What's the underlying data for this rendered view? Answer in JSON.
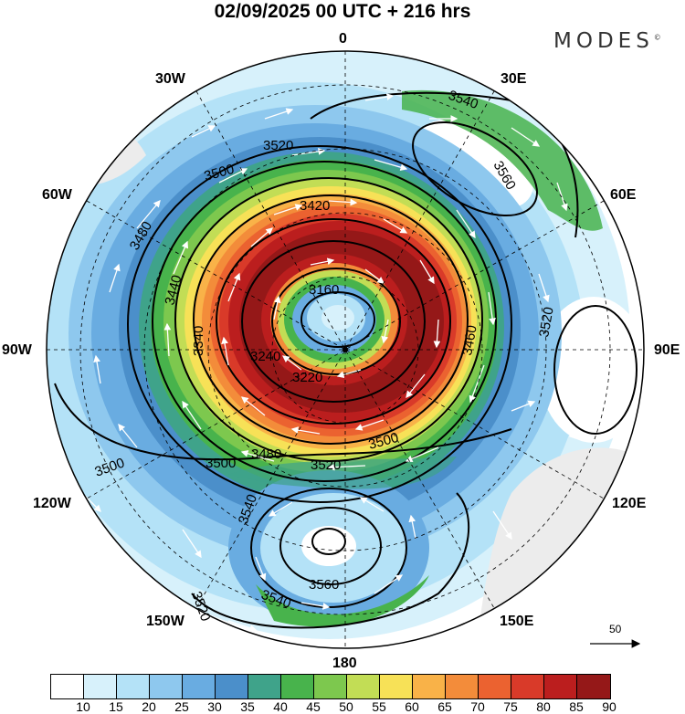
{
  "title": "02/09/2025  00 UTC  + 216 hrs",
  "brand": "MODES",
  "brand_mark": "©",
  "longitude_labels": {
    "top": "0",
    "e30": "30E",
    "e60": "60E",
    "e90": "90E",
    "e120": "120E",
    "e150": "150E",
    "bottom": "180",
    "w150": "150W",
    "w120": "120W",
    "w90": "90W",
    "w60": "60W",
    "w30": "30W"
  },
  "contour_labels": [
    "3540",
    "3520",
    "3560",
    "3500",
    "3480",
    "3440",
    "3420",
    "3160",
    "3240",
    "3220",
    "3340",
    "3520",
    "3460",
    "3500",
    "3520",
    "3480",
    "3500",
    "3540",
    "3560",
    "3540",
    "3520",
    "3500"
  ],
  "reference_vector": {
    "label": "50"
  },
  "colorbar": {
    "colors": [
      "#ffffff",
      "#d7f1fb",
      "#b4e2f7",
      "#8ec8ee",
      "#69ace1",
      "#4b8fca",
      "#3fa38a",
      "#48b34c",
      "#7dc84e",
      "#c2dd55",
      "#f7e157",
      "#f9b248",
      "#f38c3a",
      "#eb6230",
      "#d93a29",
      "#bb1e1e",
      "#951818"
    ],
    "ticks": [
      "10",
      "15",
      "20",
      "25",
      "30",
      "35",
      "40",
      "45",
      "50",
      "55",
      "60",
      "65",
      "70",
      "75",
      "80",
      "85",
      "90"
    ]
  }
}
